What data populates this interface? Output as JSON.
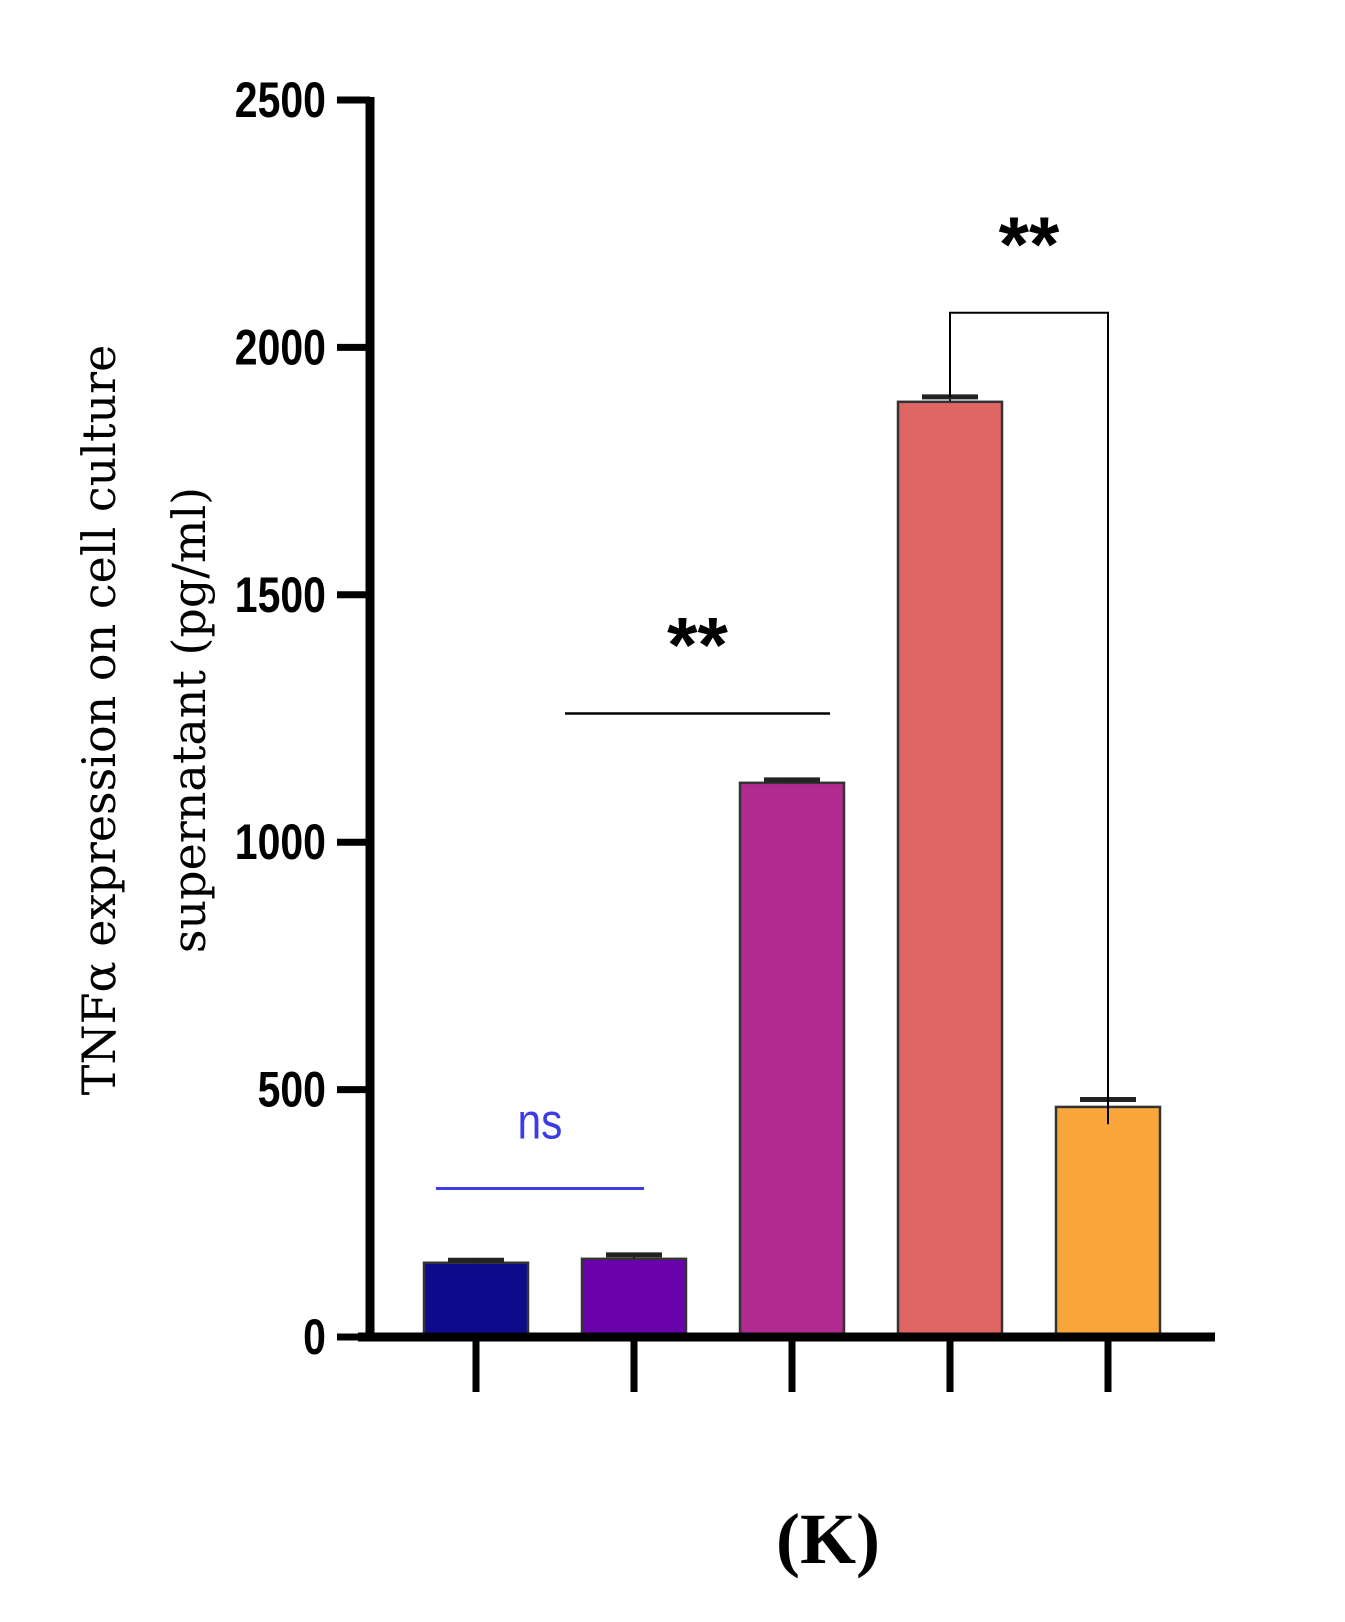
{
  "chart_data": {
    "type": "bar",
    "ylabel_lines": [
      "TNFα expression on cell culture",
      "supernatant (pg/ml)"
    ],
    "panel_label": "(K)",
    "ylim": [
      0,
      2500
    ],
    "yticks": [
      "0",
      "500",
      "1000",
      "1500",
      "2000",
      "2500"
    ],
    "ytick_values": [
      0,
      500,
      1000,
      1500,
      2000,
      2500
    ],
    "bars": [
      {
        "value": 150,
        "error": 5,
        "color": "#0e0a8c"
      },
      {
        "value": 158,
        "error": 8,
        "color": "#6a02ab"
      },
      {
        "value": 1120,
        "error": 6,
        "color": "#b02a8f"
      },
      {
        "value": 1890,
        "error": 10,
        "color": "#e06666"
      },
      {
        "value": 465,
        "error": 15,
        "color": "#f9a73b"
      }
    ],
    "annotations": [
      {
        "text": "ns",
        "color": "#3c3ce6",
        "line_y": 300,
        "from_bar": 0,
        "to_bar": 1,
        "style": "line"
      },
      {
        "text": "**",
        "color": "#000000",
        "line_y": 1260,
        "from_bar": 1,
        "to_bar": 2,
        "style": "line"
      },
      {
        "text": "**",
        "color": "#000000",
        "line_y": 2070,
        "from_bar": 3,
        "to_bar": 4,
        "style": "bracket",
        "left_end": 1900,
        "right_end": 430
      }
    ],
    "grid": false,
    "legend": "none"
  }
}
